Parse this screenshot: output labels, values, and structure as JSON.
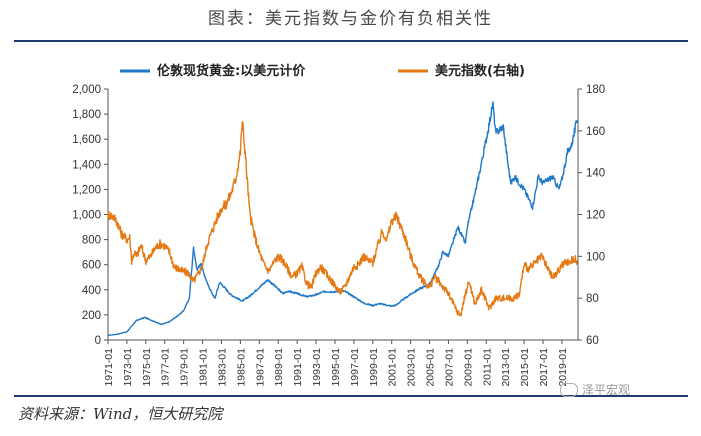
{
  "title": "图表：美元指数与金价有负相关性",
  "source": "资料来源：Wind，恒大研究院",
  "watermark": "泽平宏观",
  "colors": {
    "gold": "#1f78c8",
    "dollar": "#e57a14",
    "rule": "#1f3c6e"
  },
  "chart_data": {
    "type": "line",
    "legend_position": "top",
    "grid": false,
    "x_labels": [
      "1971-01",
      "1973-01",
      "1975-01",
      "1977-01",
      "1979-01",
      "1981-01",
      "1983-01",
      "1985-01",
      "1987-01",
      "1989-01",
      "1991-01",
      "1993-01",
      "1995-01",
      "1997-01",
      "1999-01",
      "2001-01",
      "2003-01",
      "2005-01",
      "2007-01",
      "2009-01",
      "2011-01",
      "2013-01",
      "2015-01",
      "2017-01",
      "2019-01"
    ],
    "xlim": [
      1971.0,
      2020.7
    ],
    "y_left": {
      "ylim": [
        0,
        2000
      ],
      "ticks": [
        "0",
        "200",
        "400",
        "600",
        "800",
        "1,000",
        "1,200",
        "1,400",
        "1,600",
        "1,800",
        "2,000"
      ]
    },
    "y_right": {
      "ylim": [
        60,
        180
      ],
      "ticks": [
        "60",
        "80",
        "100",
        "120",
        "140",
        "160",
        "180"
      ]
    },
    "series": [
      {
        "name": "伦敦现货黄金:以美元计价",
        "axis": "left",
        "x": [
          1971.0,
          1972.0,
          1973.0,
          1973.5,
          1974.0,
          1974.9,
          1975.5,
          1976.6,
          1977.5,
          1978.5,
          1979.0,
          1979.6,
          1980.05,
          1980.4,
          1980.8,
          1981.5,
          1982.3,
          1982.8,
          1983.3,
          1984.0,
          1985.2,
          1986.0,
          1987.0,
          1987.9,
          1988.5,
          1989.5,
          1990.0,
          1991.0,
          1992.0,
          1993.0,
          1993.6,
          1994.0,
          1995.0,
          1996.0,
          1997.0,
          1998.0,
          1999.0,
          1999.7,
          2000.0,
          2001.0,
          2001.5,
          2002.0,
          2003.0,
          2004.0,
          2005.0,
          2006.0,
          2006.4,
          2007.0,
          2008.0,
          2008.8,
          2009.0,
          2010.0,
          2011.0,
          2011.7,
          2012.0,
          2012.8,
          2013.3,
          2013.6,
          2014.0,
          2015.0,
          2015.9,
          2016.5,
          2017.0,
          2018.0,
          2018.7,
          2019.0,
          2019.6,
          2020.0,
          2020.6
        ],
        "y": [
          37,
          46,
          65,
          110,
          155,
          180,
          160,
          125,
          145,
          200,
          235,
          330,
          740,
          560,
          610,
          450,
          330,
          460,
          420,
          360,
          310,
          350,
          420,
          480,
          440,
          370,
          390,
          370,
          345,
          360,
          380,
          385,
          385,
          390,
          345,
          295,
          275,
          290,
          285,
          270,
          280,
          310,
          365,
          410,
          445,
          600,
          700,
          670,
          900,
          770,
          900,
          1230,
          1600,
          1880,
          1650,
          1700,
          1400,
          1250,
          1300,
          1200,
          1060,
          1300,
          1250,
          1300,
          1200,
          1280,
          1500,
          1550,
          1750
        ]
      },
      {
        "name": "美元指数(右轴)",
        "axis": "right",
        "x": [
          1971.0,
          1971.6,
          1972.0,
          1972.4,
          1973.0,
          1973.3,
          1973.5,
          1973.8,
          1974.0,
          1974.5,
          1975.0,
          1975.5,
          1976.0,
          1976.5,
          1977.0,
          1977.5,
          1978.0,
          1978.8,
          1979.5,
          1980.0,
          1980.5,
          1981.0,
          1981.5,
          1982.0,
          1982.5,
          1983.0,
          1983.5,
          1984.0,
          1984.5,
          1985.0,
          1985.2,
          1985.5,
          1986.0,
          1986.5,
          1987.0,
          1987.5,
          1988.0,
          1988.5,
          1989.0,
          1989.5,
          1990.0,
          1990.5,
          1991.0,
          1991.5,
          1992.0,
          1992.5,
          1993.0,
          1993.5,
          1994.0,
          1995.0,
          1995.5,
          1996.0,
          1997.0,
          1997.5,
          1998.0,
          1998.5,
          1999.0,
          2000.0,
          2000.5,
          2001.0,
          2001.5,
          2002.0,
          2002.5,
          2003.0,
          2003.5,
          2004.0,
          2005.0,
          2005.5,
          2006.0,
          2007.0,
          2008.0,
          2008.3,
          2008.9,
          2009.2,
          2009.8,
          2010.5,
          2011.3,
          2012.0,
          2013.0,
          2014.0,
          2014.5,
          2015.0,
          2015.5,
          2016.0,
          2016.9,
          2017.5,
          2018.0,
          2018.5,
          2019.0,
          2019.5,
          2020.0,
          2020.3,
          2020.6
        ],
        "y": [
          120,
          119,
          116,
          111,
          108,
          109,
          98,
          102,
          100,
          105,
          98,
          100,
          104,
          106,
          105,
          102,
          95,
          93,
          92,
          88,
          91,
          96,
          106,
          112,
          118,
          123,
          125,
          130,
          137,
          150,
          165,
          150,
          120,
          110,
          102,
          96,
          93,
          97,
          100,
          98,
          94,
          90,
          92,
          95,
          87,
          85,
          92,
          95,
          92,
          86,
          83,
          85,
          95,
          96,
          100,
          98,
          97,
          112,
          108,
          117,
          119,
          114,
          108,
          100,
          95,
          90,
          85,
          90,
          88,
          82,
          73,
          72,
          84,
          88,
          77,
          84,
          75,
          80,
          80,
          80,
          82,
          96,
          94,
          96,
          100,
          94,
          90,
          92,
          96,
          97,
          98,
          99,
          98
        ]
      }
    ]
  }
}
